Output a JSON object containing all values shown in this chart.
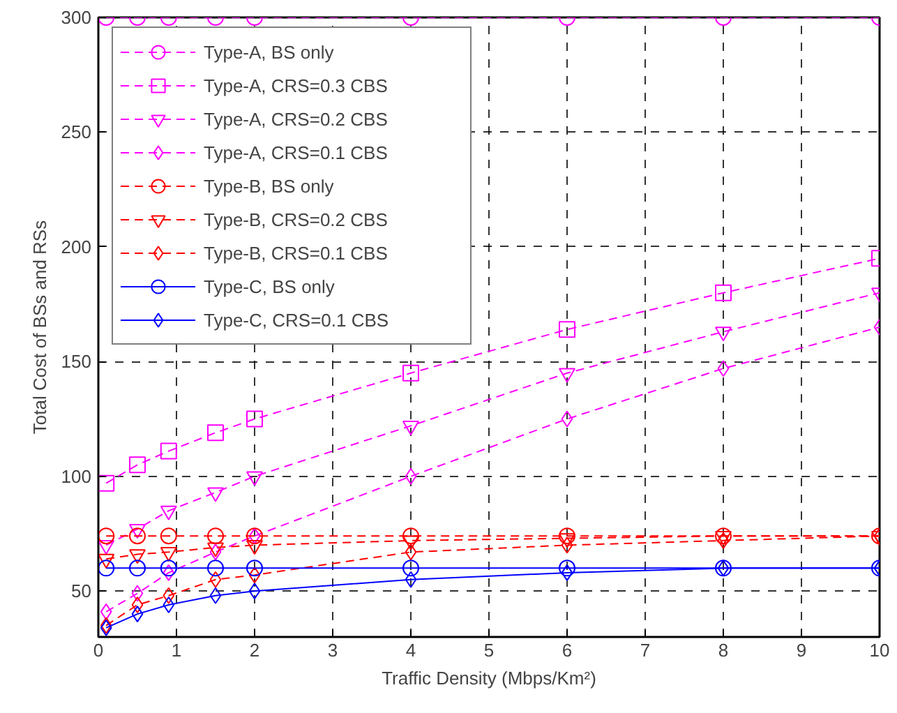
{
  "chart_data": {
    "type": "line",
    "xlabel": "Traffic Density (Mbps/Km²)",
    "ylabel": "Total Cost of BSs and RSs",
    "x": [
      0.1,
      0.5,
      0.9,
      1.5,
      2,
      4,
      6,
      8,
      10
    ],
    "xlim": [
      0,
      10
    ],
    "xticks": [
      0,
      1,
      2,
      3,
      4,
      5,
      6,
      7,
      8,
      9,
      10
    ],
    "ylim": [
      30,
      300
    ],
    "yticks": [
      50,
      100,
      150,
      200,
      250,
      300
    ],
    "grid": true,
    "legend": "top left",
    "series": [
      {
        "name": "Type-A, BS only",
        "color": "#ff00ff",
        "marker": "circle",
        "line_style": "dashed",
        "values": [
          300,
          300,
          300,
          300,
          300,
          300,
          300,
          300,
          300
        ]
      },
      {
        "name": "Type-A, CRS=0.3 CBS",
        "color": "#ff00ff",
        "marker": "square",
        "line_style": "dashed",
        "values": [
          97,
          105,
          111,
          119,
          125,
          145,
          164,
          180,
          195
        ]
      },
      {
        "name": "Type-A, CRS=0.2 CBS",
        "color": "#ff00ff",
        "marker": "triangle",
        "line_style": "dashed",
        "values": [
          70,
          77,
          85,
          93,
          100,
          122,
          145,
          163,
          180
        ]
      },
      {
        "name": "Type-A, CRS=0.1 CBS",
        "color": "#ff00ff",
        "marker": "diamond",
        "line_style": "dashed",
        "values": [
          41,
          49,
          58,
          67,
          74,
          100,
          125,
          147,
          165
        ]
      },
      {
        "name": "Type-B, BS only",
        "color": "#ff0000",
        "marker": "circle",
        "line_style": "dashed",
        "values": [
          74,
          74,
          74,
          74,
          74,
          74,
          74,
          74,
          74
        ]
      },
      {
        "name": "Type-B, CRS=0.2 CBS",
        "color": "#ff0000",
        "marker": "triangle",
        "line_style": "dashed",
        "values": [
          64,
          66,
          67,
          69,
          70,
          72,
          73,
          74,
          74
        ]
      },
      {
        "name": "Type-B, CRS=0.1 CBS",
        "color": "#ff0000",
        "marker": "diamond",
        "line_style": "dashed",
        "values": [
          35,
          44,
          48,
          55,
          57,
          67,
          70,
          72,
          74
        ]
      },
      {
        "name": "Type-C, BS only",
        "color": "#0000ff",
        "marker": "circle",
        "line_style": "solid",
        "values": [
          60,
          60,
          60,
          60,
          60,
          60,
          60,
          60,
          60
        ]
      },
      {
        "name": "Type-C, CRS=0.1 CBS",
        "color": "#0000ff",
        "marker": "diamond",
        "line_style": "solid",
        "values": [
          34,
          40,
          44,
          48,
          50,
          55,
          58,
          60,
          60
        ]
      }
    ]
  }
}
